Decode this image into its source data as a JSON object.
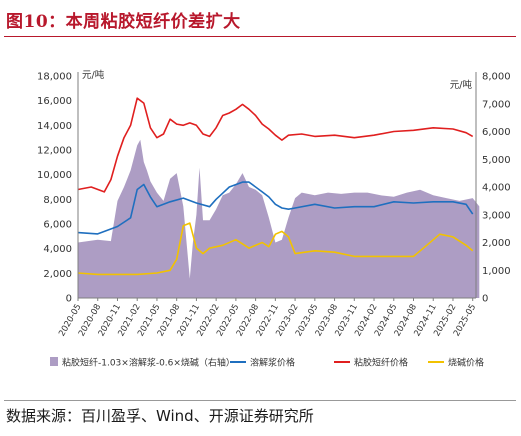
{
  "figure": {
    "title": "图10：本周粘胶短纤价差扩大",
    "source": "数据来源：百川盈孚、Wind、开源证券研究所"
  },
  "chart_data": {
    "type": "line",
    "left_unit": "元/吨",
    "right_unit": "元/吨",
    "left_ylim": [
      0,
      18000
    ],
    "right_ylim": [
      0,
      8000
    ],
    "left_ticks": [
      "0",
      "2,000",
      "4,000",
      "6,000",
      "8,000",
      "10,000",
      "12,000",
      "14,000",
      "16,000",
      "18,000"
    ],
    "right_ticks": [
      "0",
      "1,000",
      "2,000",
      "3,000",
      "4,000",
      "5,000",
      "6,000",
      "7,000",
      "8,000"
    ],
    "x_ticks": [
      "2020-05",
      "2020-08",
      "2020-11",
      "2021-02",
      "2021-05",
      "2021-08",
      "2021-11",
      "2022-02",
      "2022-05",
      "2022-08",
      "2022-11",
      "2023-02",
      "2023-05",
      "2023-08",
      "2023-11",
      "2024-02",
      "2024-05",
      "2024-08",
      "2024-11",
      "2025-02",
      "2025-05"
    ],
    "grid": false,
    "legend_position": "bottom",
    "series": [
      {
        "name": "粘胶短纤-1.03×溶解浆-0.6×烧碱（右轴）",
        "type": "area",
        "axis": "right",
        "color": "#ad9dc4",
        "x": [
          "2020-05",
          "2020-08",
          "2020-10",
          "2020-11",
          "2020-12",
          "2021-01",
          "2021-02",
          "2021-02-15",
          "2021-03",
          "2021-03-15",
          "2021-04",
          "2021-05",
          "2021-06",
          "2021-07",
          "2021-08",
          "2021-09",
          "2021-10",
          "2021-10-15",
          "2021-11",
          "2021-11-15",
          "2021-12",
          "2022-01",
          "2022-02",
          "2022-03",
          "2022-04",
          "2022-05",
          "2022-06",
          "2022-07",
          "2022-08",
          "2022-09",
          "2022-10",
          "2022-11",
          "2022-12",
          "2023-01",
          "2023-02",
          "2023-03",
          "2023-05",
          "2023-07",
          "2023-09",
          "2023-11",
          "2024-01",
          "2024-03",
          "2024-05",
          "2024-07",
          "2024-09",
          "2024-11",
          "2025-01",
          "2025-03",
          "2025-05",
          "2025-06"
        ],
        "values": [
          2000,
          2100,
          2050,
          3500,
          4000,
          4600,
          5500,
          5700,
          4900,
          4600,
          4200,
          3800,
          3500,
          4300,
          4500,
          3300,
          700,
          2000,
          3000,
          4700,
          2800,
          2800,
          3200,
          3700,
          3800,
          4100,
          4500,
          4000,
          3900,
          3700,
          2900,
          2000,
          2100,
          2900,
          3600,
          3800,
          3700,
          3800,
          3750,
          3800,
          3800,
          3700,
          3650,
          3800,
          3900,
          3700,
          3600,
          3500,
          3600,
          3300
        ]
      },
      {
        "name": "溶解浆价格",
        "type": "line",
        "axis": "left",
        "color": "#1f6fbf",
        "x": [
          "2020-05",
          "2020-08",
          "2020-11",
          "2021-01",
          "2021-02",
          "2021-03",
          "2021-04",
          "2021-05",
          "2021-07",
          "2021-09",
          "2021-11",
          "2022-01",
          "2022-02",
          "2022-03",
          "2022-04",
          "2022-06",
          "2022-07",
          "2022-09",
          "2022-10",
          "2022-11",
          "2022-12",
          "2023-01",
          "2023-02",
          "2023-05",
          "2023-08",
          "2023-11",
          "2024-02",
          "2024-05",
          "2024-08",
          "2024-11",
          "2025-02",
          "2025-04",
          "2025-05"
        ],
        "values": [
          5300,
          5200,
          5800,
          6500,
          8800,
          9200,
          8200,
          7400,
          7800,
          8100,
          7700,
          7400,
          8000,
          8500,
          9000,
          9400,
          9400,
          8600,
          8200,
          7600,
          7300,
          7200,
          7300,
          7600,
          7300,
          7400,
          7400,
          7800,
          7700,
          7800,
          7800,
          7600,
          6800
        ]
      },
      {
        "name": "粘胶短纤价格",
        "type": "line",
        "axis": "left",
        "color": "#e01f1f",
        "x": [
          "2020-05",
          "2020-07",
          "2020-09",
          "2020-10",
          "2020-11",
          "2020-12",
          "2021-01",
          "2021-02",
          "2021-03",
          "2021-04",
          "2021-05",
          "2021-06",
          "2021-07",
          "2021-08",
          "2021-09",
          "2021-10",
          "2021-11",
          "2021-12",
          "2022-01",
          "2022-02",
          "2022-03",
          "2022-04",
          "2022-05",
          "2022-06",
          "2022-07",
          "2022-08",
          "2022-09",
          "2022-10",
          "2022-11",
          "2022-12",
          "2023-01",
          "2023-03",
          "2023-05",
          "2023-08",
          "2023-11",
          "2024-02",
          "2024-05",
          "2024-08",
          "2024-11",
          "2025-02",
          "2025-04",
          "2025-05"
        ],
        "values": [
          8800,
          9000,
          8600,
          9600,
          11500,
          13000,
          14000,
          16200,
          15800,
          13800,
          13000,
          13300,
          14500,
          14100,
          14000,
          14200,
          14000,
          13300,
          13100,
          13800,
          14800,
          15000,
          15300,
          15700,
          15300,
          14800,
          14100,
          13700,
          13200,
          12800,
          13200,
          13300,
          13100,
          13200,
          13000,
          13200,
          13500,
          13600,
          13800,
          13700,
          13400,
          13100
        ]
      },
      {
        "name": "烧碱价格",
        "type": "line",
        "axis": "right",
        "color": "#f2c200",
        "x": [
          "2020-05",
          "2020-08",
          "2020-11",
          "2021-02",
          "2021-05",
          "2021-07",
          "2021-08",
          "2021-09",
          "2021-10",
          "2021-11",
          "2021-12",
          "2022-01",
          "2022-03",
          "2022-05",
          "2022-07",
          "2022-09",
          "2022-10",
          "2022-11",
          "2022-12",
          "2023-01",
          "2023-02",
          "2023-05",
          "2023-08",
          "2023-11",
          "2024-02",
          "2024-05",
          "2024-08",
          "2024-10",
          "2024-12",
          "2025-02",
          "2025-04",
          "2025-05"
        ],
        "values": [
          900,
          850,
          850,
          850,
          900,
          1000,
          1400,
          2600,
          2700,
          1800,
          1600,
          1800,
          1900,
          2100,
          1800,
          2000,
          1850,
          2300,
          2400,
          2200,
          1600,
          1700,
          1650,
          1500,
          1500,
          1500,
          1500,
          1900,
          2300,
          2200,
          1900,
          1700
        ]
      }
    ]
  }
}
